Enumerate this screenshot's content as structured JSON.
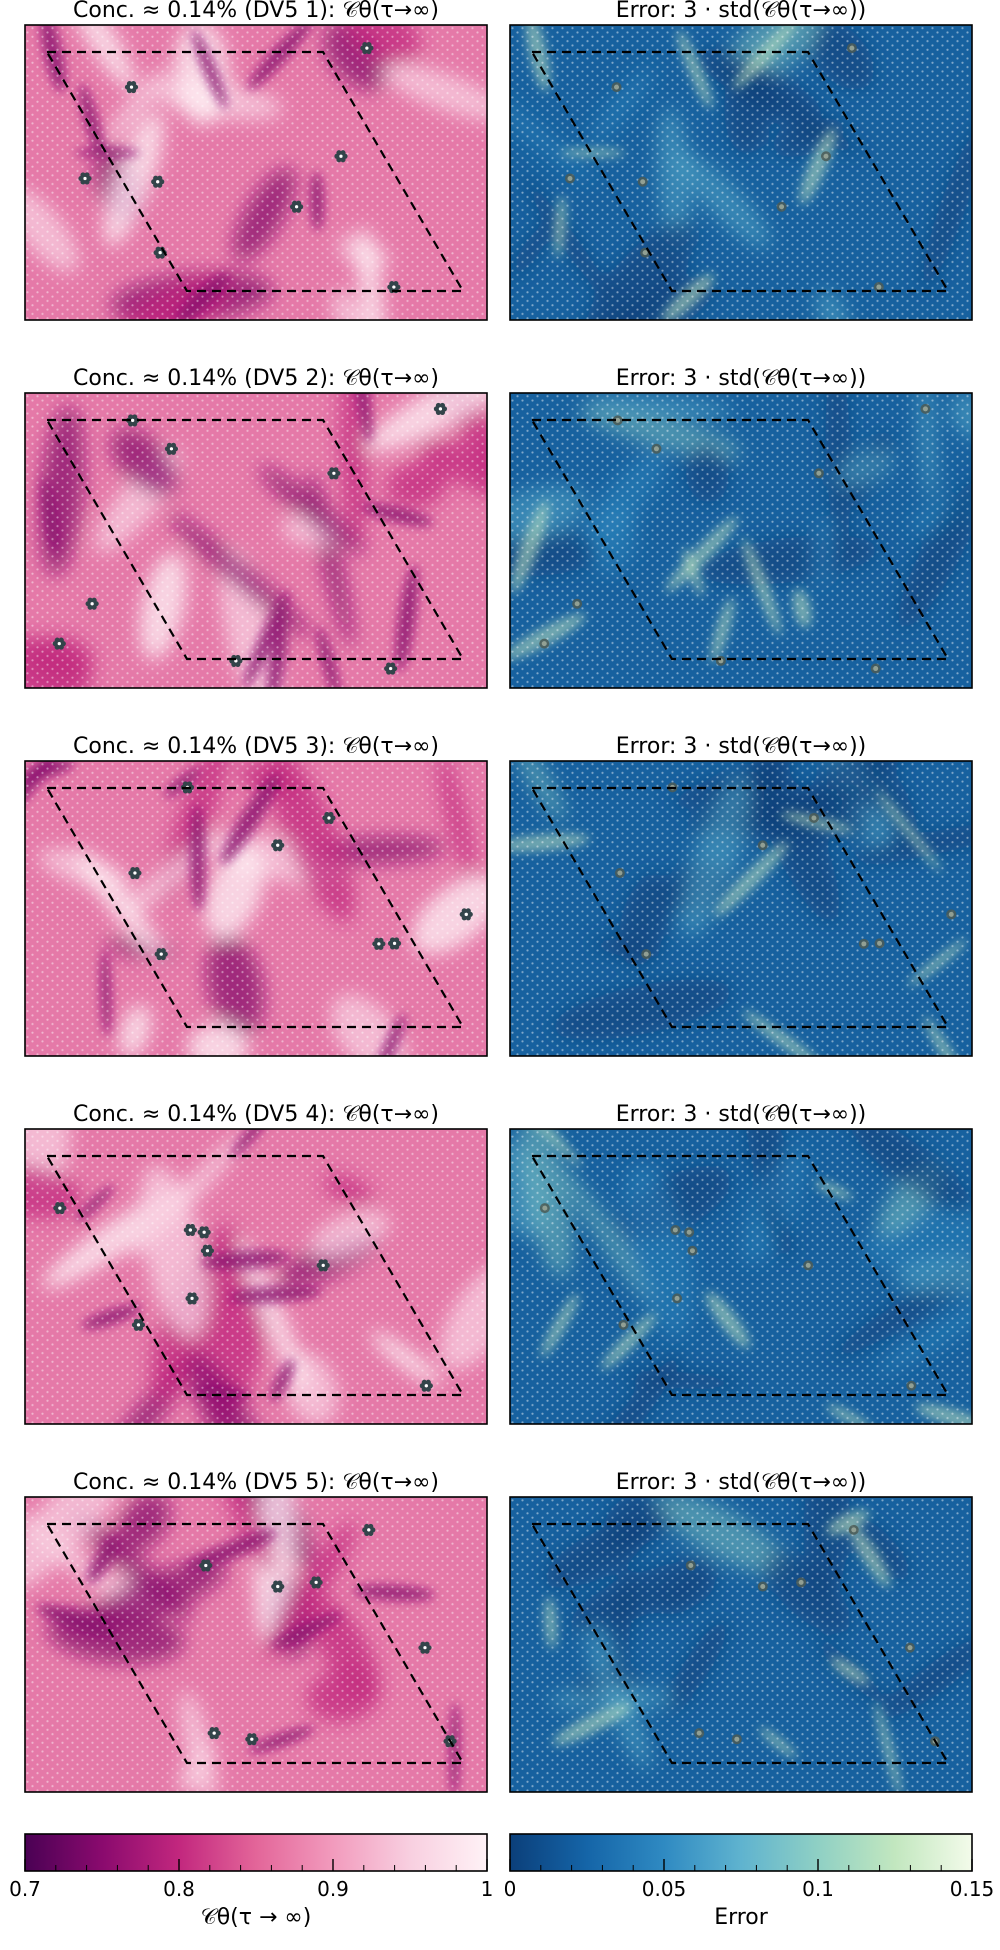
{
  "chart_data": {
    "type": "heatmap",
    "grid_rows": 5,
    "grid_cols": 2,
    "panels": [
      {
        "row": 1,
        "col": 1,
        "title": "Conc. ≈ 0.14% (DV5 1): 𝒞θ(τ→∞)",
        "colormap": "pink",
        "seed": 11
      },
      {
        "row": 1,
        "col": 2,
        "title": "Error: 3 · std(𝒞θ(τ→∞))",
        "colormap": "blue",
        "seed": 11
      },
      {
        "row": 2,
        "col": 1,
        "title": "Conc. ≈ 0.14% (DV5 2): 𝒞θ(τ→∞)",
        "colormap": "pink",
        "seed": 23
      },
      {
        "row": 2,
        "col": 2,
        "title": "Error: 3 · std(𝒞θ(τ→∞))",
        "colormap": "blue",
        "seed": 23
      },
      {
        "row": 3,
        "col": 1,
        "title": "Conc. ≈ 0.14% (DV5 3): 𝒞θ(τ→∞)",
        "colormap": "pink",
        "seed": 37
      },
      {
        "row": 3,
        "col": 2,
        "title": "Error: 3 · std(𝒞θ(τ→∞))",
        "colormap": "blue",
        "seed": 37
      },
      {
        "row": 4,
        "col": 1,
        "title": "Conc. ≈ 0.14% (DV5 4): 𝒞θ(τ→∞)",
        "colormap": "pink",
        "seed": 41
      },
      {
        "row": 4,
        "col": 2,
        "title": "Error: 3 · std(𝒞θ(τ→∞))",
        "colormap": "blue",
        "seed": 41
      },
      {
        "row": 5,
        "col": 1,
        "title": "Conc. ≈ 0.14% (DV5 5): 𝒞θ(τ→∞)",
        "colormap": "pink",
        "seed": 53
      },
      {
        "row": 5,
        "col": 2,
        "title": "Error: 3 · std(𝒞θ(τ→∞))",
        "colormap": "blue",
        "seed": 53
      }
    ],
    "colorbars": [
      {
        "name": "conductance",
        "range": [
          0.7,
          1.0
        ],
        "ticks": [
          0.7,
          0.8,
          0.9,
          1.0
        ],
        "tick_labels": [
          "0.7",
          "0.8",
          "0.9",
          "1"
        ],
        "label": "𝒞θ(τ → ∞)",
        "colors": [
          "#4a0154",
          "#8a0a6e",
          "#c2277e",
          "#e36599",
          "#f29bbd",
          "#f8cfe0",
          "#fff2f6"
        ]
      },
      {
        "name": "error",
        "range": [
          0,
          0.15
        ],
        "ticks": [
          0,
          0.05,
          0.1,
          0.15
        ],
        "tick_labels": [
          "0",
          "0.05",
          "0.1",
          "0.15"
        ],
        "label": "Error",
        "colors": [
          "#0b3f7a",
          "#1565a8",
          "#2f8ac2",
          "#5fb3cf",
          "#8fd0c4",
          "#c2e7bf",
          "#f3fbea"
        ]
      }
    ],
    "supercell_outline": "dashed parallelogram",
    "defect_markers": "DV5 defects (dark gray flowers)"
  }
}
